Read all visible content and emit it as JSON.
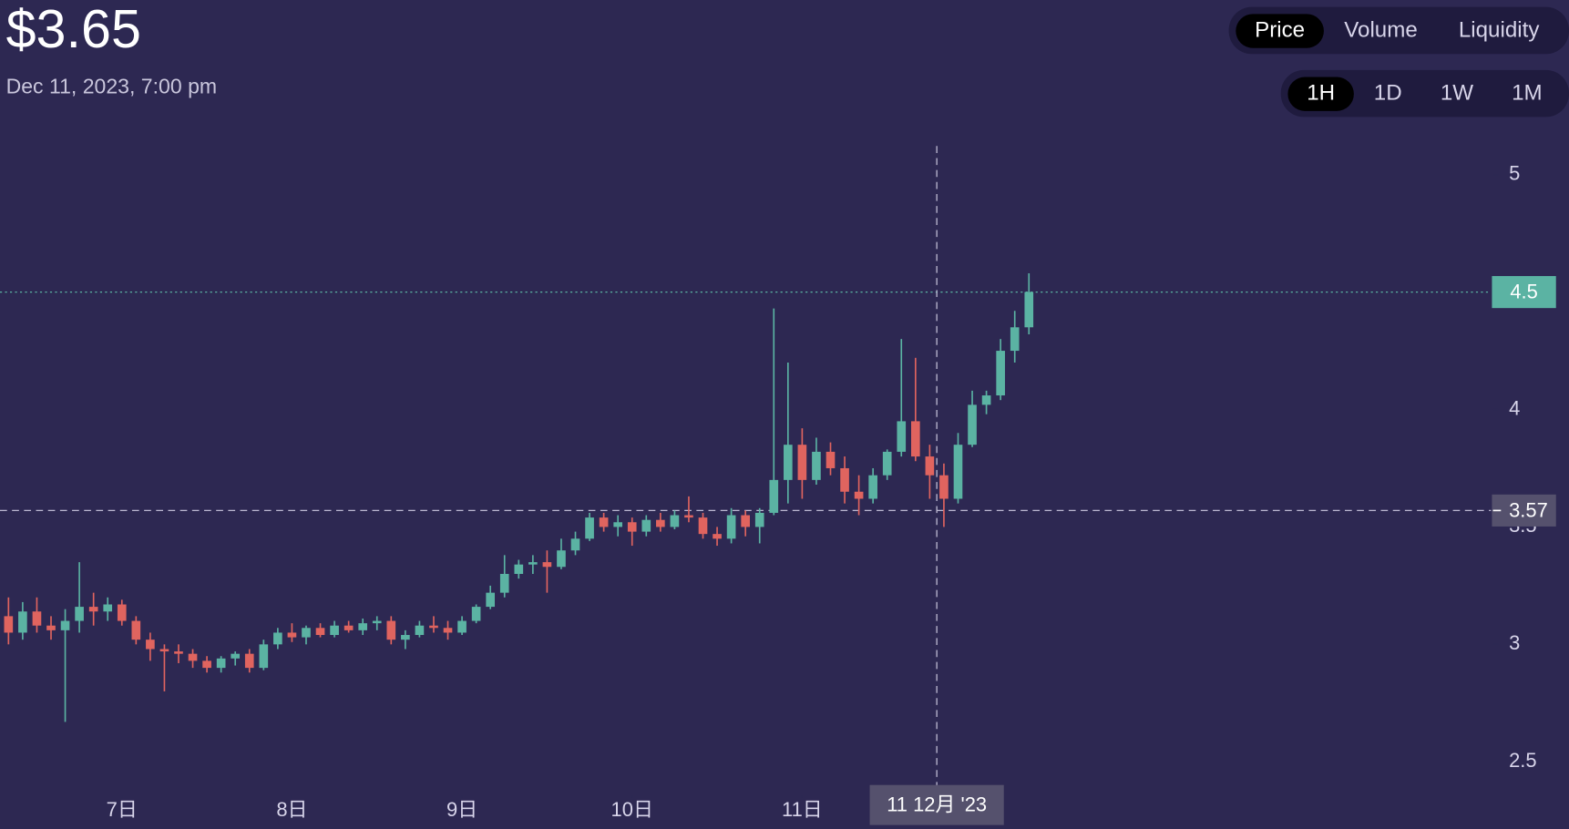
{
  "header": {
    "price": "$3.65",
    "date": "Dec 11, 2023, 7:00 pm"
  },
  "metric_tabs": {
    "items": [
      "Price",
      "Volume",
      "Liquidity"
    ],
    "active": 0
  },
  "range_tabs": {
    "items": [
      "1H",
      "1D",
      "1W",
      "1M"
    ],
    "active": 0
  },
  "chart_data": {
    "type": "candlestick",
    "up_color": "#5bb3a3",
    "down_color": "#e0645f",
    "xlim": [
      -17.2,
      193.2
    ],
    "xticks": [
      {
        "value": 0,
        "label": "7日"
      },
      {
        "value": 24,
        "label": "8日"
      },
      {
        "value": 48,
        "label": "9日"
      },
      {
        "value": 72,
        "label": "10日"
      },
      {
        "value": 96,
        "label": "11日"
      }
    ],
    "ylim": [
      2.38,
      5.19
    ],
    "yticks": [
      2.5,
      3,
      3.5,
      4,
      4.5,
      5
    ],
    "last_price": 4.5,
    "crosshair_price": 3.57,
    "crosshair_x": {
      "value": 115,
      "label": "11 12月 '23"
    },
    "x": [
      -16,
      -14,
      -12,
      -10,
      -8,
      -6,
      -4,
      -2,
      0,
      2,
      4,
      6,
      8,
      10,
      12,
      14,
      16,
      18,
      20,
      22,
      24,
      26,
      28,
      30,
      32,
      34,
      36,
      38,
      40,
      42,
      44,
      46,
      48,
      50,
      52,
      54,
      56,
      58,
      60,
      62,
      64,
      66,
      68,
      70,
      72,
      74,
      76,
      78,
      80,
      82,
      84,
      86,
      88,
      90,
      92,
      94,
      96,
      98,
      100,
      102,
      104,
      106,
      108,
      110,
      112,
      114,
      116,
      118,
      120,
      122,
      124,
      126,
      128
    ],
    "ohlc": [
      [
        3.12,
        3.2,
        3.0,
        3.05
      ],
      [
        3.05,
        3.18,
        3.02,
        3.14
      ],
      [
        3.14,
        3.2,
        3.05,
        3.08
      ],
      [
        3.08,
        3.12,
        3.02,
        3.06
      ],
      [
        3.06,
        3.15,
        2.67,
        3.1
      ],
      [
        3.1,
        3.35,
        3.05,
        3.16
      ],
      [
        3.16,
        3.22,
        3.08,
        3.14
      ],
      [
        3.14,
        3.2,
        3.1,
        3.17
      ],
      [
        3.17,
        3.19,
        3.08,
        3.1
      ],
      [
        3.1,
        3.12,
        3.0,
        3.02
      ],
      [
        3.02,
        3.05,
        2.93,
        2.98
      ],
      [
        2.98,
        3.0,
        2.8,
        2.97
      ],
      [
        2.97,
        3.0,
        2.92,
        2.96
      ],
      [
        2.96,
        2.98,
        2.9,
        2.93
      ],
      [
        2.93,
        2.95,
        2.88,
        2.9
      ],
      [
        2.9,
        2.95,
        2.88,
        2.94
      ],
      [
        2.94,
        2.97,
        2.91,
        2.96
      ],
      [
        2.96,
        2.98,
        2.88,
        2.9
      ],
      [
        2.9,
        3.02,
        2.89,
        3.0
      ],
      [
        3.0,
        3.07,
        2.98,
        3.05
      ],
      [
        3.05,
        3.09,
        3.01,
        3.03
      ],
      [
        3.03,
        3.08,
        3.0,
        3.07
      ],
      [
        3.07,
        3.09,
        3.03,
        3.04
      ],
      [
        3.04,
        3.1,
        3.03,
        3.08
      ],
      [
        3.08,
        3.1,
        3.05,
        3.06
      ],
      [
        3.06,
        3.11,
        3.04,
        3.09
      ],
      [
        3.09,
        3.12,
        3.06,
        3.1
      ],
      [
        3.1,
        3.12,
        3.0,
        3.02
      ],
      [
        3.02,
        3.06,
        2.98,
        3.04
      ],
      [
        3.04,
        3.1,
        3.03,
        3.08
      ],
      [
        3.08,
        3.12,
        3.05,
        3.07
      ],
      [
        3.07,
        3.1,
        3.02,
        3.05
      ],
      [
        3.05,
        3.12,
        3.04,
        3.1
      ],
      [
        3.1,
        3.17,
        3.09,
        3.16
      ],
      [
        3.16,
        3.25,
        3.15,
        3.22
      ],
      [
        3.22,
        3.38,
        3.2,
        3.3
      ],
      [
        3.3,
        3.36,
        3.28,
        3.34
      ],
      [
        3.34,
        3.38,
        3.3,
        3.35
      ],
      [
        3.35,
        3.4,
        3.22,
        3.33
      ],
      [
        3.33,
        3.45,
        3.32,
        3.4
      ],
      [
        3.4,
        3.48,
        3.38,
        3.45
      ],
      [
        3.45,
        3.56,
        3.44,
        3.54
      ],
      [
        3.54,
        3.56,
        3.48,
        3.5
      ],
      [
        3.5,
        3.55,
        3.46,
        3.52
      ],
      [
        3.52,
        3.54,
        3.42,
        3.48
      ],
      [
        3.48,
        3.55,
        3.46,
        3.53
      ],
      [
        3.53,
        3.56,
        3.48,
        3.5
      ],
      [
        3.5,
        3.57,
        3.49,
        3.55
      ],
      [
        3.55,
        3.63,
        3.52,
        3.54
      ],
      [
        3.54,
        3.56,
        3.45,
        3.47
      ],
      [
        3.47,
        3.5,
        3.42,
        3.45
      ],
      [
        3.45,
        3.58,
        3.43,
        3.55
      ],
      [
        3.55,
        3.57,
        3.46,
        3.5
      ],
      [
        3.5,
        3.58,
        3.43,
        3.56
      ],
      [
        3.56,
        4.43,
        3.55,
        3.7
      ],
      [
        3.7,
        4.2,
        3.6,
        3.85
      ],
      [
        3.85,
        3.92,
        3.62,
        3.7
      ],
      [
        3.7,
        3.88,
        3.68,
        3.82
      ],
      [
        3.82,
        3.86,
        3.72,
        3.75
      ],
      [
        3.75,
        3.8,
        3.6,
        3.65
      ],
      [
        3.65,
        3.72,
        3.55,
        3.62
      ],
      [
        3.62,
        3.75,
        3.6,
        3.72
      ],
      [
        3.72,
        3.83,
        3.7,
        3.82
      ],
      [
        3.82,
        4.3,
        3.8,
        3.95
      ],
      [
        3.95,
        4.22,
        3.78,
        3.8
      ],
      [
        3.8,
        3.85,
        3.62,
        3.72
      ],
      [
        3.72,
        3.77,
        3.5,
        3.62
      ],
      [
        3.62,
        3.9,
        3.6,
        3.85
      ],
      [
        3.85,
        4.08,
        3.84,
        4.02
      ],
      [
        4.02,
        4.08,
        3.98,
        4.06
      ],
      [
        4.06,
        4.3,
        4.04,
        4.25
      ],
      [
        4.25,
        4.42,
        4.2,
        4.35
      ],
      [
        4.35,
        4.58,
        4.32,
        4.5
      ]
    ]
  }
}
